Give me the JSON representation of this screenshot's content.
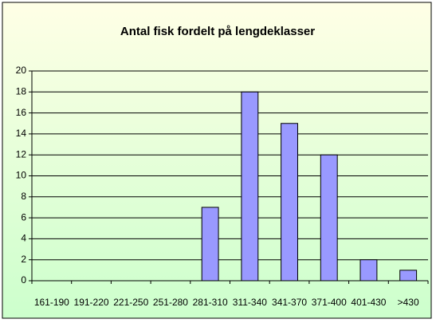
{
  "chart_data": {
    "type": "bar",
    "title": "Antal fisk fordelt på lengdeklasser",
    "categories": [
      "161-190",
      "191-220",
      "221-250",
      "251-280",
      "281-310",
      "311-340",
      "341-370",
      "371-400",
      "401-430",
      ">430"
    ],
    "values": [
      0,
      0,
      0,
      0,
      7,
      18,
      15,
      12,
      2,
      1
    ],
    "color": "#9999ff",
    "ylim": [
      0,
      20
    ],
    "yticks": [
      0,
      2,
      4,
      6,
      8,
      10,
      12,
      14,
      16,
      18,
      20
    ],
    "grid": true
  }
}
